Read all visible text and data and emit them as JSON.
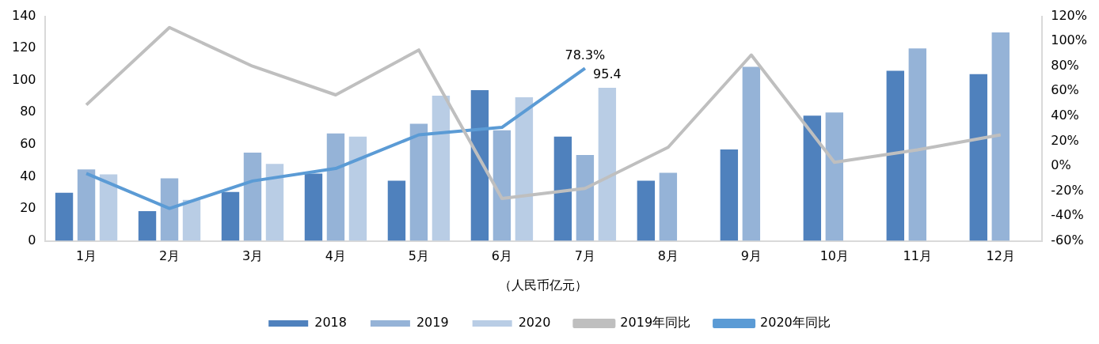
{
  "chart_data": {
    "type": "bar",
    "xlabel": "（人民币亿元）",
    "categories": [
      "1月",
      "2月",
      "3月",
      "4月",
      "5月",
      "6月",
      "7月",
      "8月",
      "9月",
      "10月",
      "11月",
      "12月"
    ],
    "series": [
      {
        "name": "2018",
        "color": "#4f81bd",
        "values": [
          30,
          18.5,
          30.5,
          42,
          37.5,
          94,
          65,
          37.5,
          57,
          78,
          106,
          104
        ]
      },
      {
        "name": "2019",
        "color": "#95b3d7",
        "values": [
          44.5,
          39,
          55,
          67,
          73,
          69,
          53.5,
          42.5,
          108.5,
          80,
          120,
          130
        ]
      },
      {
        "name": "2020",
        "color": "#b9cde5",
        "values": [
          41.5,
          25.5,
          48,
          65,
          90.5,
          89.5,
          95.4,
          null,
          null,
          null,
          null,
          null
        ],
        "value_labels": [
          null,
          null,
          null,
          null,
          null,
          null,
          "95.4",
          null,
          null,
          null,
          null,
          null
        ]
      },
      {
        "name": "2019年同比",
        "type": "line",
        "axis": "y2",
        "color": "#bfbfbf",
        "values": [
          49,
          111,
          80,
          57,
          93,
          -26,
          -18,
          15,
          89,
          3,
          13,
          25
        ]
      },
      {
        "name": "2020年同比",
        "type": "line",
        "axis": "y2",
        "color": "#5b9bd5",
        "values": [
          -6,
          -34,
          -12,
          -2,
          25,
          31,
          78.3,
          null,
          null,
          null,
          null,
          null
        ],
        "value_labels": [
          null,
          null,
          null,
          null,
          null,
          null,
          "78.3%",
          null,
          null,
          null,
          null,
          null
        ]
      }
    ],
    "ylim": [
      0,
      140
    ],
    "yticks": [
      0,
      20,
      40,
      60,
      80,
      100,
      120,
      140
    ],
    "y2lim": [
      -60,
      120
    ],
    "y2ticks": [
      {
        "value": -60,
        "label": "-60%"
      },
      {
        "value": -40,
        "label": "-40%"
      },
      {
        "value": -20,
        "label": "-20%"
      },
      {
        "value": 0,
        "label": "0%"
      },
      {
        "value": 20,
        "label": "20%"
      },
      {
        "value": 40,
        "label": "40%"
      },
      {
        "value": 60,
        "label": "60%"
      },
      {
        "value": 80,
        "label": "80%"
      },
      {
        "value": 100,
        "label": "100%"
      },
      {
        "value": 120,
        "label": "120%"
      }
    ],
    "grid": false,
    "legend": "bottom",
    "marker": "none",
    "line_style": "solid"
  }
}
